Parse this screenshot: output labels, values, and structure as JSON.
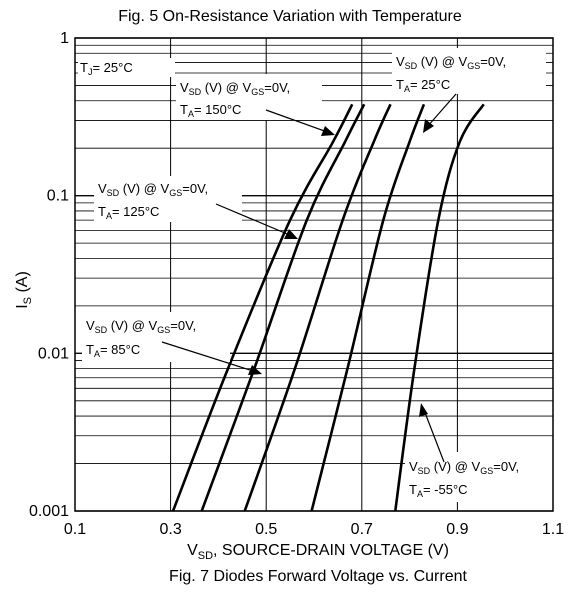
{
  "chart_data": {
    "type": "line",
    "title": "Fig. 5  On-Resistance Variation with Temperature",
    "caption": "Fig. 7 Diodes Forward Voltage vs. Current",
    "xlabel_main": "V",
    "xlabel_sub": "SD",
    "xlabel_rest": ", SOURCE-DRAIN VOLTAGE (V)",
    "ylabel_main": "I",
    "ylabel_sub": "S",
    "ylabel_rest": " (A)",
    "xlim": [
      0.1,
      1.1
    ],
    "ylim": [
      0.001,
      1
    ],
    "yscale": "log",
    "grid": true,
    "x_ticks": [
      "0.1",
      "0.3",
      "0.5",
      "0.7",
      "0.9",
      "1.1"
    ],
    "y_ticks": [
      "0.001",
      "0.01",
      "0.1",
      "1"
    ],
    "condition_label": "T",
    "condition_sub": "J",
    "condition_value": "= 25°C",
    "series": [
      {
        "points": [
          [
            0.305,
            0.001
          ],
          [
            0.42,
            0.008
          ],
          [
            0.55,
            0.07
          ],
          [
            0.64,
            0.22
          ],
          [
            0.68,
            0.38
          ]
        ]
      },
      {
        "points": [
          [
            0.365,
            0.001
          ],
          [
            0.475,
            0.008
          ],
          [
            0.585,
            0.07
          ],
          [
            0.665,
            0.22
          ],
          [
            0.705,
            0.38
          ]
        ]
      },
      {
        "points": [
          [
            0.455,
            0.001
          ],
          [
            0.56,
            0.008
          ],
          [
            0.66,
            0.07
          ],
          [
            0.725,
            0.22
          ],
          [
            0.76,
            0.38
          ]
        ]
      },
      {
        "points": [
          [
            0.595,
            0.001
          ],
          [
            0.67,
            0.008
          ],
          [
            0.745,
            0.07
          ],
          [
            0.8,
            0.22
          ],
          [
            0.83,
            0.38
          ]
        ]
      },
      {
        "points": [
          [
            0.77,
            0.001
          ],
          [
            0.81,
            0.008
          ],
          [
            0.86,
            0.07
          ],
          [
            0.905,
            0.22
          ],
          [
            0.955,
            0.38
          ]
        ]
      }
    ],
    "annotations": [
      {
        "l1": [
          "V",
          "SD",
          " (V) @ V",
          "GS",
          "=0V,"
        ],
        "l2": [
          "T",
          "A",
          "= 150°C"
        ]
      },
      {
        "l1": [
          "V",
          "SD",
          " (V) @ V",
          "GS",
          "=0V,"
        ],
        "l2": [
          "T",
          "A",
          "= 125°C"
        ]
      },
      {
        "l1": [
          "V",
          "SD",
          " (V) @ V",
          "GS",
          "=0V,"
        ],
        "l2": [
          "T",
          "A",
          "= 85°C"
        ]
      },
      {
        "l1": [
          "V",
          "SD",
          " (V) @ V",
          "GS",
          "=0V,"
        ],
        "l2": [
          "T",
          "A",
          "= 25°C"
        ]
      },
      {
        "l1": [
          "V",
          "SD",
          " (V) @ V",
          "GS",
          "=0V,"
        ],
        "l2": [
          "T",
          "A",
          "= -55°C"
        ]
      }
    ]
  }
}
